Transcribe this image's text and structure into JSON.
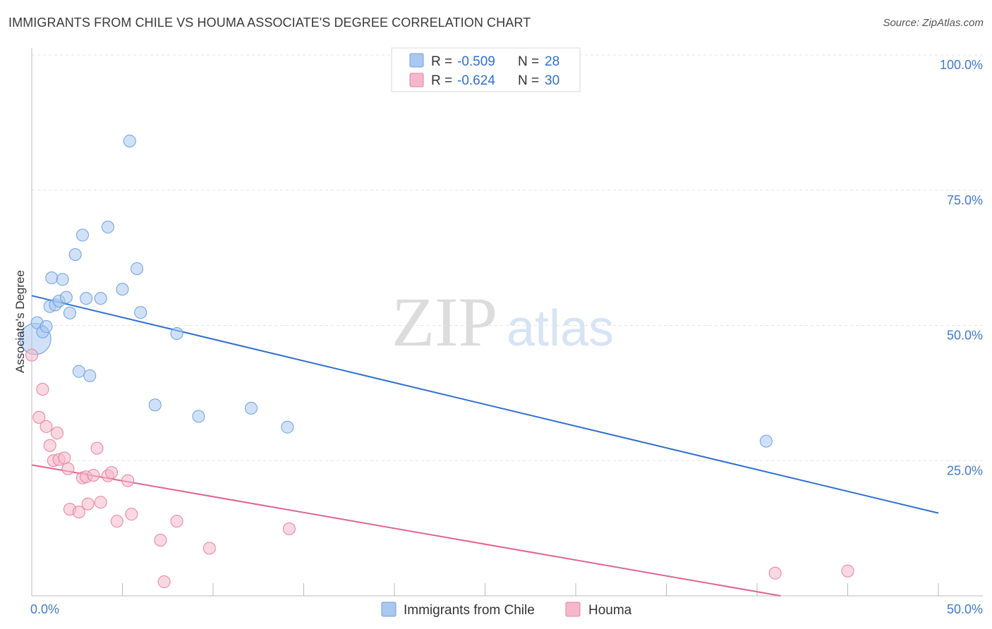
{
  "header": {
    "title": "IMMIGRANTS FROM CHILE VS HOUMA ASSOCIATE'S DEGREE CORRELATION CHART",
    "source": "Source: ZipAtlas.com"
  },
  "watermark": {
    "zip": "ZIP",
    "atlas": "atlas"
  },
  "legend": {
    "r_label": "R =",
    "n_label": "N =",
    "entries": [
      {
        "r": "-0.509",
        "n": "28",
        "color": "#a9c8f0"
      },
      {
        "r": "-0.624",
        "n": "30",
        "color": "#f5b8cb"
      }
    ]
  },
  "chart_data": {
    "type": "scatter",
    "title": "IMMIGRANTS FROM CHILE VS HOUMA ASSOCIATE'S DEGREE CORRELATION CHART",
    "xlabel": "",
    "ylabel": "Associate's Degree",
    "xlim": [
      0,
      50
    ],
    "ylim": [
      0,
      100
    ],
    "x_tick_labels": [
      "0.0%",
      "50.0%"
    ],
    "y_ticks": [
      25,
      50,
      75,
      100
    ],
    "y_tick_labels": [
      "25.0%",
      "50.0%",
      "75.0%",
      "100.0%"
    ],
    "grid": true,
    "legend_position": "top-center",
    "series": [
      {
        "name": "Immigrants from Chile",
        "color": "#a9c8f0",
        "edge": "#6e9fe0",
        "line_color": "#2f6fd1",
        "trend": {
          "x": [
            0,
            50
          ],
          "y": [
            55.5,
            15.3
          ]
        },
        "points": [
          {
            "x": 0.2,
            "y": 47.5,
            "big": true
          },
          {
            "x": 0.3,
            "y": 50.5
          },
          {
            "x": 0.6,
            "y": 48.8
          },
          {
            "x": 0.8,
            "y": 49.8
          },
          {
            "x": 1.0,
            "y": 53.5
          },
          {
            "x": 1.1,
            "y": 58.8
          },
          {
            "x": 1.3,
            "y": 53.8
          },
          {
            "x": 1.5,
            "y": 54.5
          },
          {
            "x": 1.7,
            "y": 58.5
          },
          {
            "x": 1.9,
            "y": 55.2
          },
          {
            "x": 2.1,
            "y": 52.3
          },
          {
            "x": 2.4,
            "y": 63.1
          },
          {
            "x": 2.6,
            "y": 41.5
          },
          {
            "x": 2.8,
            "y": 66.7
          },
          {
            "x": 3.0,
            "y": 55.0
          },
          {
            "x": 3.2,
            "y": 40.7
          },
          {
            "x": 3.8,
            "y": 55.0
          },
          {
            "x": 4.2,
            "y": 68.2
          },
          {
            "x": 5.0,
            "y": 56.7
          },
          {
            "x": 5.4,
            "y": 84.1
          },
          {
            "x": 5.8,
            "y": 60.5
          },
          {
            "x": 6.0,
            "y": 52.4
          },
          {
            "x": 6.8,
            "y": 35.3
          },
          {
            "x": 8.0,
            "y": 48.5
          },
          {
            "x": 9.2,
            "y": 33.2
          },
          {
            "x": 12.1,
            "y": 34.7
          },
          {
            "x": 14.1,
            "y": 31.2
          },
          {
            "x": 40.5,
            "y": 28.6
          }
        ]
      },
      {
        "name": "Houma",
        "color": "#f5b8cb",
        "edge": "#e87fa0",
        "line_color": "#e0648f",
        "trend": {
          "x": [
            0,
            41.3
          ],
          "y": [
            24.2,
            0
          ]
        },
        "points": [
          {
            "x": 0.0,
            "y": 44.5
          },
          {
            "x": 0.4,
            "y": 33.0
          },
          {
            "x": 0.6,
            "y": 38.2
          },
          {
            "x": 0.8,
            "y": 31.3
          },
          {
            "x": 1.0,
            "y": 27.8
          },
          {
            "x": 1.2,
            "y": 25.0
          },
          {
            "x": 1.4,
            "y": 30.1
          },
          {
            "x": 1.5,
            "y": 25.2
          },
          {
            "x": 1.8,
            "y": 25.5
          },
          {
            "x": 2.0,
            "y": 23.5
          },
          {
            "x": 2.1,
            "y": 16.0
          },
          {
            "x": 2.6,
            "y": 15.5
          },
          {
            "x": 2.8,
            "y": 21.8
          },
          {
            "x": 3.0,
            "y": 22.0
          },
          {
            "x": 3.1,
            "y": 17.0
          },
          {
            "x": 3.4,
            "y": 22.3
          },
          {
            "x": 3.6,
            "y": 27.3
          },
          {
            "x": 3.8,
            "y": 17.3
          },
          {
            "x": 4.2,
            "y": 22.2
          },
          {
            "x": 4.4,
            "y": 22.8
          },
          {
            "x": 4.7,
            "y": 13.8
          },
          {
            "x": 5.3,
            "y": 21.3
          },
          {
            "x": 5.5,
            "y": 15.1
          },
          {
            "x": 7.1,
            "y": 10.3
          },
          {
            "x": 7.3,
            "y": 2.6
          },
          {
            "x": 8.0,
            "y": 13.8
          },
          {
            "x": 9.8,
            "y": 8.8
          },
          {
            "x": 14.2,
            "y": 12.4
          },
          {
            "x": 41.0,
            "y": 4.2
          },
          {
            "x": 45.0,
            "y": 4.6
          }
        ]
      }
    ]
  }
}
